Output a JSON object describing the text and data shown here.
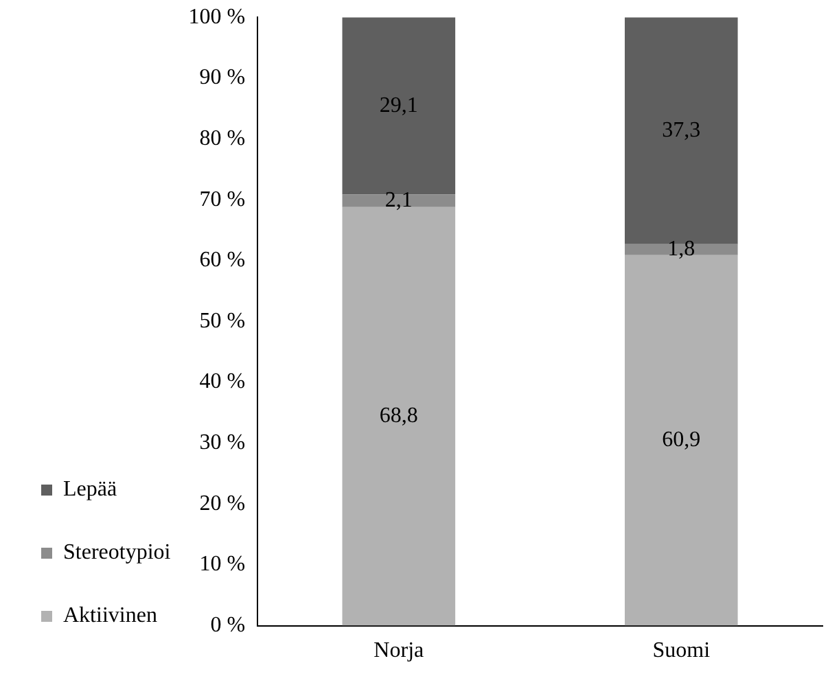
{
  "chart_data": {
    "type": "bar",
    "stacked": true,
    "categories": [
      "Norja",
      "Suomi"
    ],
    "series": [
      {
        "name": "Aktiivinen",
        "color": "#b2b2b2",
        "values": [
          68.8,
          60.9
        ],
        "value_labels": [
          "68,8",
          "60,9"
        ]
      },
      {
        "name": "Stereotypioi",
        "color": "#8c8c8c",
        "values": [
          2.1,
          1.8
        ],
        "value_labels": [
          "2,1",
          "1,8"
        ]
      },
      {
        "name": "Lepää",
        "color": "#5f5f5f",
        "values": [
          29.1,
          37.3
        ],
        "value_labels": [
          "29,1",
          "37,3"
        ]
      }
    ],
    "ylim": [
      0,
      100
    ],
    "yticks": [
      {
        "value": 0,
        "label": "0 %"
      },
      {
        "value": 10,
        "label": "10 %"
      },
      {
        "value": 20,
        "label": "20 %"
      },
      {
        "value": 30,
        "label": "30 %"
      },
      {
        "value": 40,
        "label": "40 %"
      },
      {
        "value": 50,
        "label": "50 %"
      },
      {
        "value": 60,
        "label": "60 %"
      },
      {
        "value": 70,
        "label": "70 %"
      },
      {
        "value": 80,
        "label": "80 %"
      },
      {
        "value": 90,
        "label": "90 %"
      },
      {
        "value": 100,
        "label": "100 %"
      }
    ],
    "grid": false,
    "legend": "left"
  }
}
